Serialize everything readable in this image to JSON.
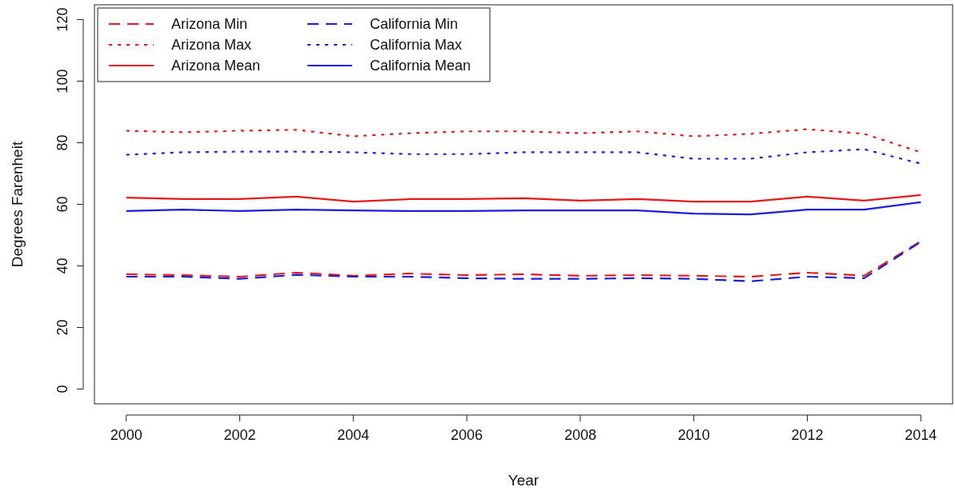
{
  "chart_data": {
    "type": "line",
    "xlabel": "Year",
    "ylabel": "Degrees Farenheit",
    "x": [
      2000,
      2001,
      2002,
      2003,
      2004,
      2005,
      2006,
      2007,
      2008,
      2009,
      2010,
      2011,
      2012,
      2013,
      2014
    ],
    "xlim": [
      1999.44,
      2014.56
    ],
    "xticks": [
      2000,
      2002,
      2004,
      2006,
      2008,
      2010,
      2012,
      2014
    ],
    "ylim": [
      -4.8,
      124.8
    ],
    "yticks": [
      0,
      20,
      40,
      60,
      80,
      100,
      120
    ],
    "grid": false,
    "legend": "top left",
    "marker": "none",
    "series": [
      {
        "name": "Arizona Min",
        "color": "#e41a1c",
        "line_style": "dashed",
        "values": [
          37.3,
          37,
          36.5,
          37.8,
          36.8,
          37.5,
          37,
          37.3,
          36.8,
          37,
          36.8,
          36.5,
          37.8,
          36.8,
          48
        ]
      },
      {
        "name": "Arizona Max",
        "color": "#e41a1c",
        "line_style": "dotted",
        "values": [
          83.9,
          83.4,
          83.9,
          84.2,
          82.1,
          83.1,
          83.7,
          83.7,
          83.1,
          83.7,
          82.1,
          82.9,
          84.4,
          82.9,
          76.9
        ]
      },
      {
        "name": "Arizona Mean",
        "color": "#e41a1c",
        "line_style": "solid",
        "values": [
          62.2,
          61.7,
          61.7,
          62.5,
          60.9,
          61.7,
          61.7,
          62,
          61.2,
          61.7,
          60.9,
          60.9,
          62.5,
          61.2,
          63
        ]
      },
      {
        "name": "California Min",
        "color": "#1c1cdc",
        "line_style": "dashed",
        "values": [
          36.5,
          36.5,
          35.8,
          37.1,
          36.5,
          36.5,
          36,
          35.8,
          35.8,
          36,
          35.8,
          35,
          36.5,
          36,
          47.8
        ]
      },
      {
        "name": "California Max",
        "color": "#1c1cdc",
        "line_style": "dotted",
        "values": [
          76.1,
          76.9,
          77.1,
          77.1,
          76.9,
          76.3,
          76.3,
          76.9,
          76.9,
          76.9,
          74.8,
          74.8,
          76.9,
          77.9,
          73.2
        ]
      },
      {
        "name": "California Mean",
        "color": "#1c1cdc",
        "line_style": "solid",
        "values": [
          57.8,
          58.3,
          57.8,
          58.3,
          58,
          57.8,
          57.8,
          58,
          58,
          58,
          57,
          56.7,
          58.3,
          58.3,
          60.7
        ]
      }
    ]
  }
}
